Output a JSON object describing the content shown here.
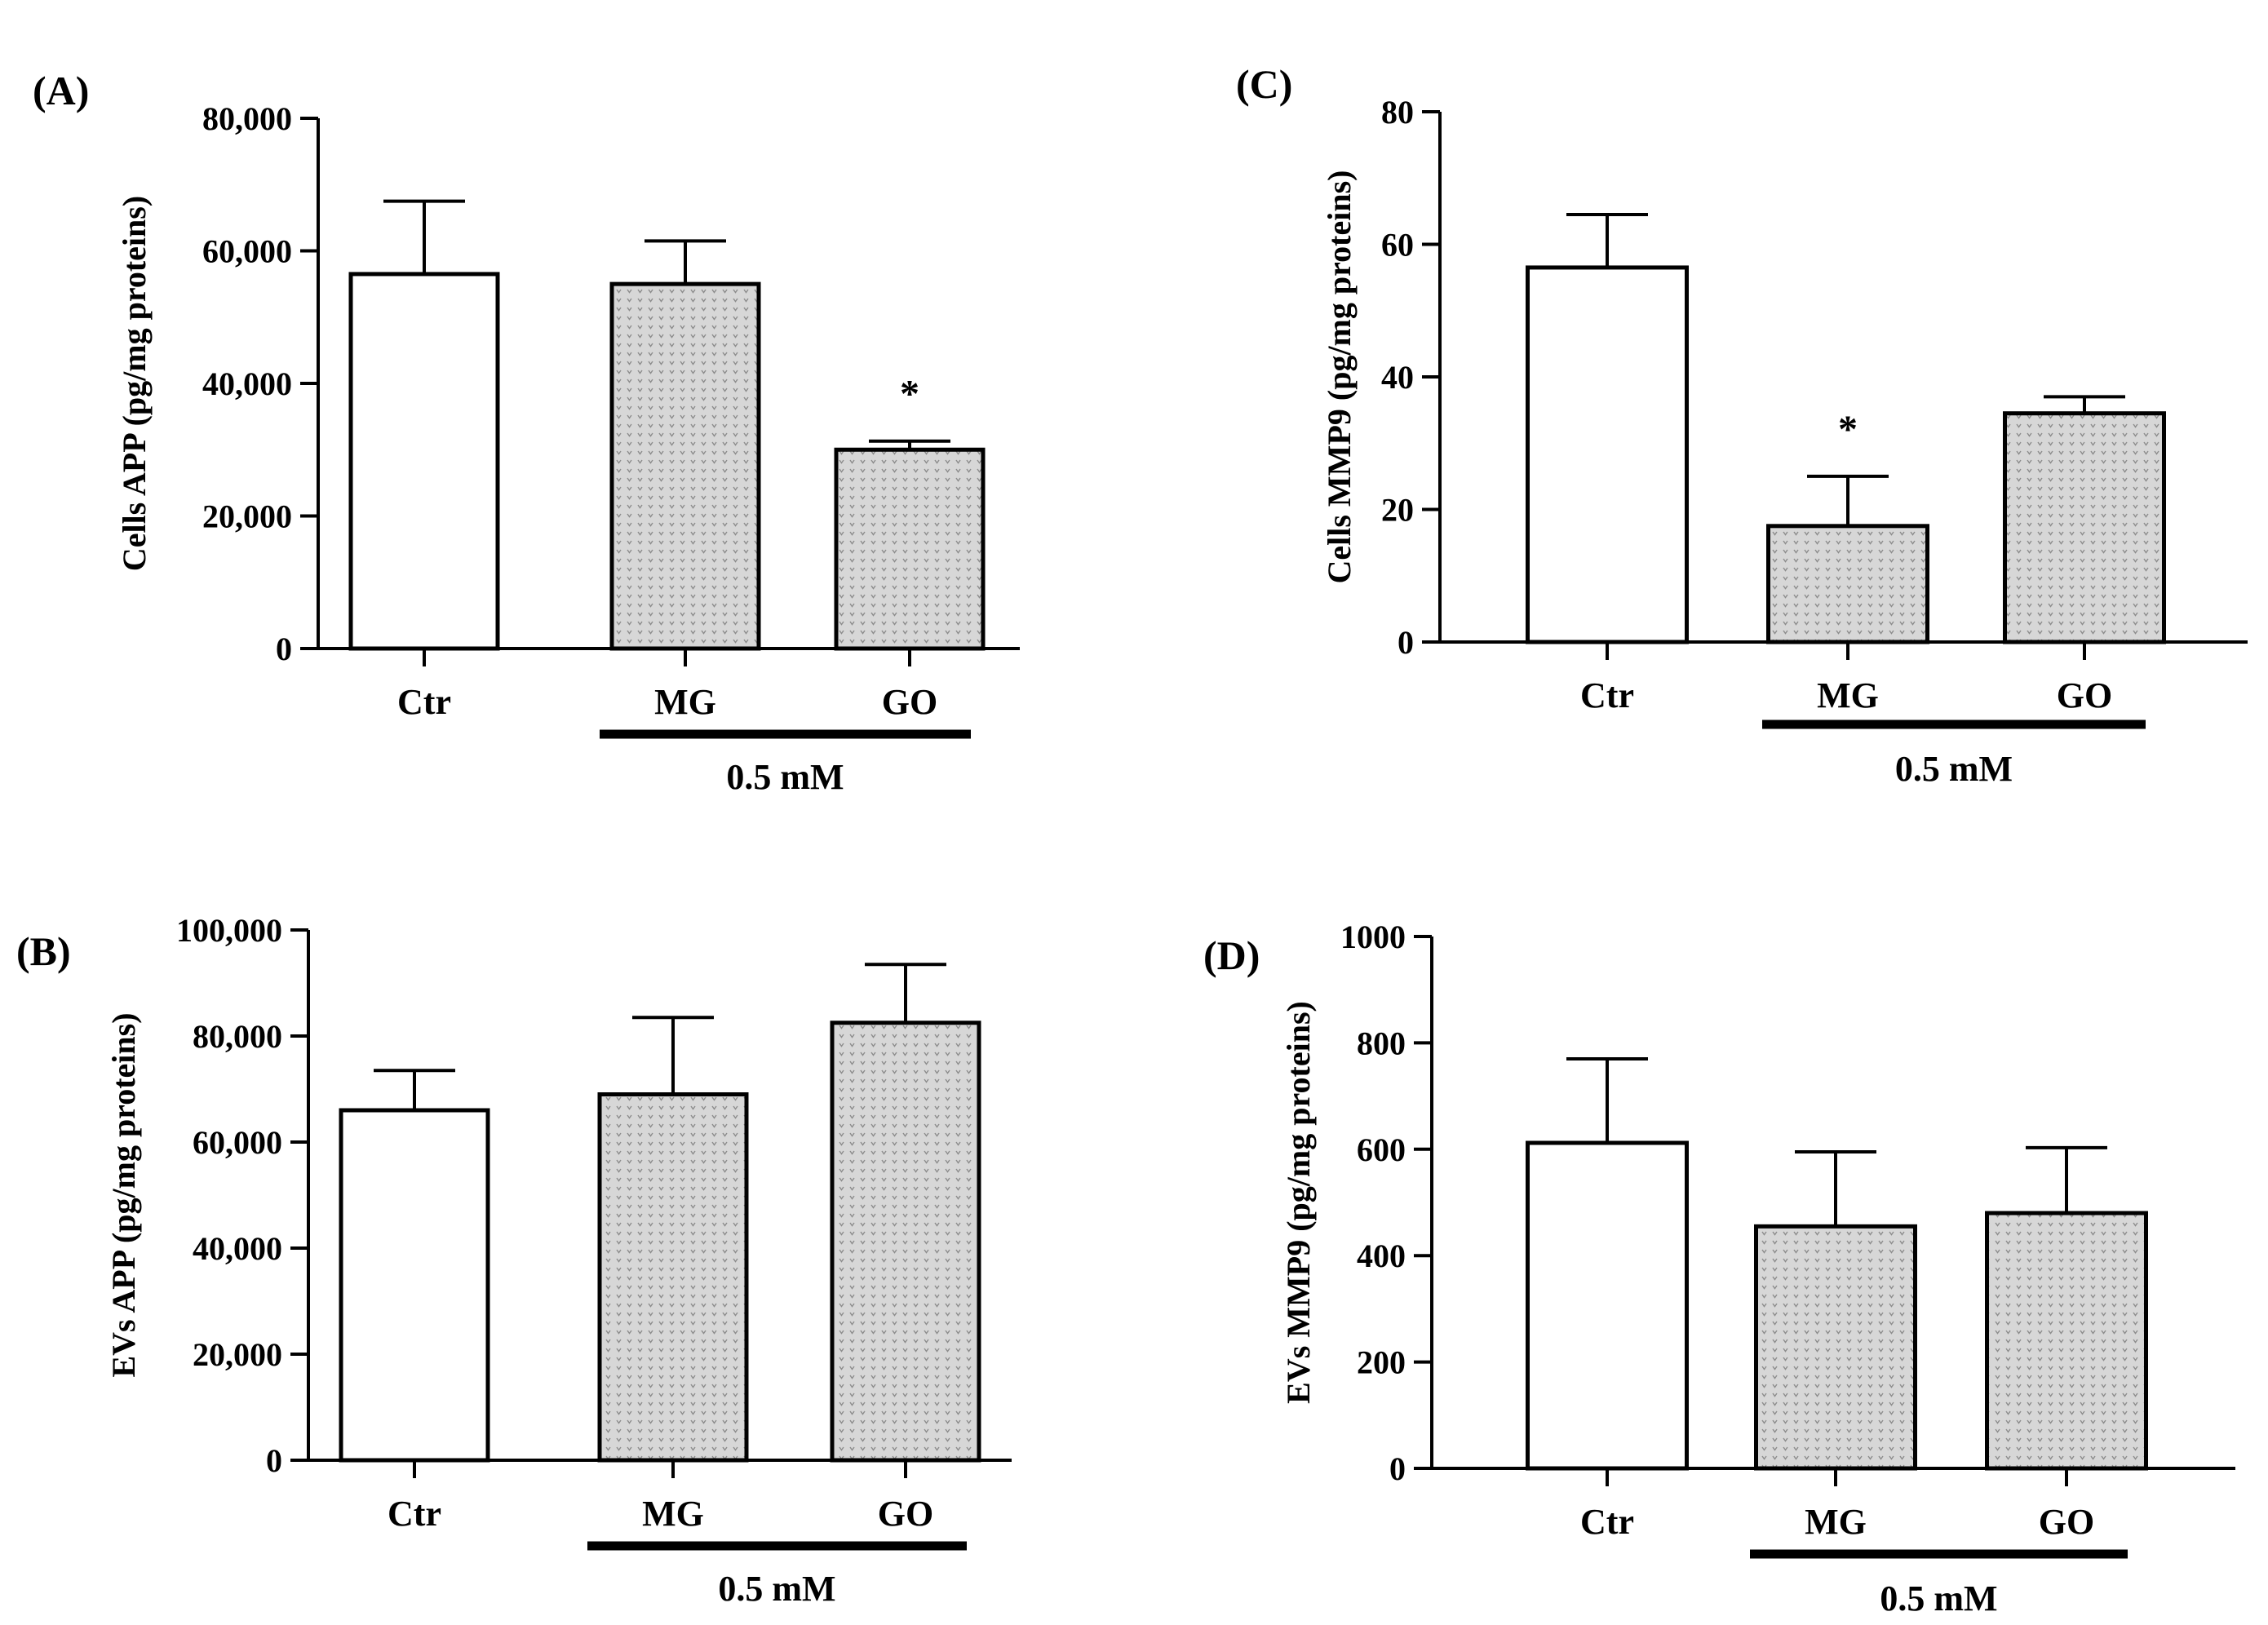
{
  "colors": {
    "axis": "#000000",
    "bar_fill_open": "#ffffff",
    "bar_fill_pattern": "#d7d7d7",
    "pattern_mark": "#8c8c8c",
    "background": "#ffffff"
  },
  "chart_data": [
    {
      "panel_label": "(A)",
      "type": "bar",
      "ylabel": "Cells APP  (pg/mg proteins)",
      "categories": [
        "Ctr",
        "MG",
        "GO"
      ],
      "values": [
        56500,
        55000,
        30000
      ],
      "errors": [
        11000,
        6500,
        1300
      ],
      "patterned": [
        false,
        true,
        true
      ],
      "significance": [
        "",
        "",
        "*"
      ],
      "ylim": [
        0,
        80000
      ],
      "yticks": [
        0,
        20000,
        40000,
        60000,
        80000
      ],
      "ytick_labels": [
        "0",
        "20,000",
        "40,000",
        "60,000",
        "80,000"
      ],
      "group_label": "0.5 mM"
    },
    {
      "panel_label": "(B)",
      "type": "bar",
      "ylabel": "EVs APP  (pg/mg proteins)",
      "categories": [
        "Ctr",
        "MG",
        "GO"
      ],
      "values": [
        66000,
        69000,
        82500
      ],
      "errors": [
        7500,
        14500,
        11000
      ],
      "patterned": [
        false,
        true,
        true
      ],
      "significance": [
        "",
        "",
        ""
      ],
      "ylim": [
        0,
        100000
      ],
      "yticks": [
        0,
        20000,
        40000,
        60000,
        80000,
        100000
      ],
      "ytick_labels": [
        "0",
        "20,000",
        "40,000",
        "60,000",
        "80,000",
        "100,000"
      ],
      "group_label": "0.5 mM"
    },
    {
      "panel_label": "(C)",
      "type": "bar",
      "ylabel": "Cells MMP9  (pg/mg proteins)",
      "categories": [
        "Ctr",
        "MG",
        "GO"
      ],
      "values": [
        56.5,
        17.5,
        34.5
      ],
      "errors": [
        8,
        7.5,
        2.5
      ],
      "patterned": [
        false,
        true,
        true
      ],
      "significance": [
        "",
        "*",
        ""
      ],
      "ylim": [
        0,
        80
      ],
      "yticks": [
        0,
        20,
        40,
        60,
        80
      ],
      "ytick_labels": [
        "0",
        "20",
        "40",
        "60",
        "80"
      ],
      "group_label": "0.5 mM"
    },
    {
      "panel_label": "(D)",
      "type": "bar",
      "ylabel": "EVs MMP9  (pg/mg proteins)",
      "categories": [
        "Ctr",
        "MG",
        "GO"
      ],
      "values": [
        612,
        455,
        480
      ],
      "errors": [
        158,
        140,
        123
      ],
      "patterned": [
        false,
        true,
        true
      ],
      "significance": [
        "",
        "",
        ""
      ],
      "ylim": [
        0,
        1000
      ],
      "yticks": [
        0,
        200,
        400,
        600,
        800,
        1000
      ],
      "ytick_labels": [
        "0",
        "200",
        "400",
        "600",
        "800",
        "1000"
      ],
      "group_label": "0.5 mM"
    }
  ]
}
